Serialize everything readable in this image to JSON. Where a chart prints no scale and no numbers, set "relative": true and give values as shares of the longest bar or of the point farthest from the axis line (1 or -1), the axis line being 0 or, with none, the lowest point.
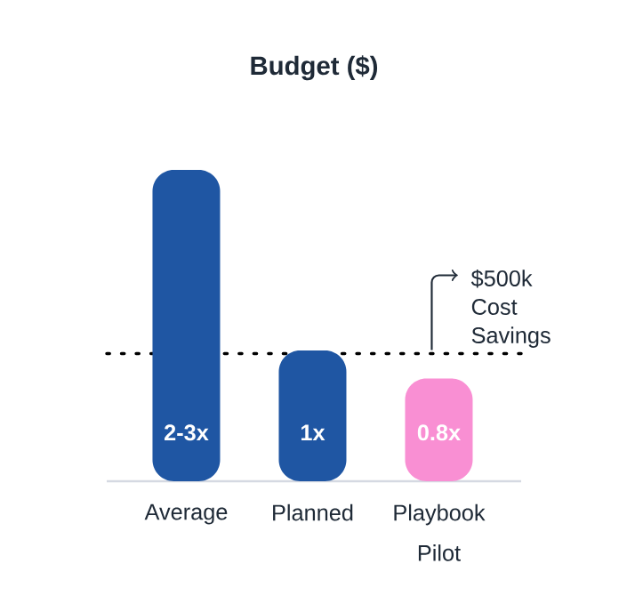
{
  "chart_data": {
    "type": "bar",
    "title": "Budget ($)",
    "categories": [
      "Average",
      "Planned",
      "Playbook Pilot"
    ],
    "values": [
      1,
      0.42,
      0.33
    ],
    "colors": [
      "#1f56a3",
      "#1f56a3",
      "#f98fd3"
    ],
    "relative": true,
    "ref_lines": [
      {
        "axis": "y",
        "value": 0.41,
        "line_style": "dotted"
      }
    ],
    "annotations": [
      "2-3x",
      "1x",
      "0.8x",
      "$500k Cost Savings"
    ]
  }
}
